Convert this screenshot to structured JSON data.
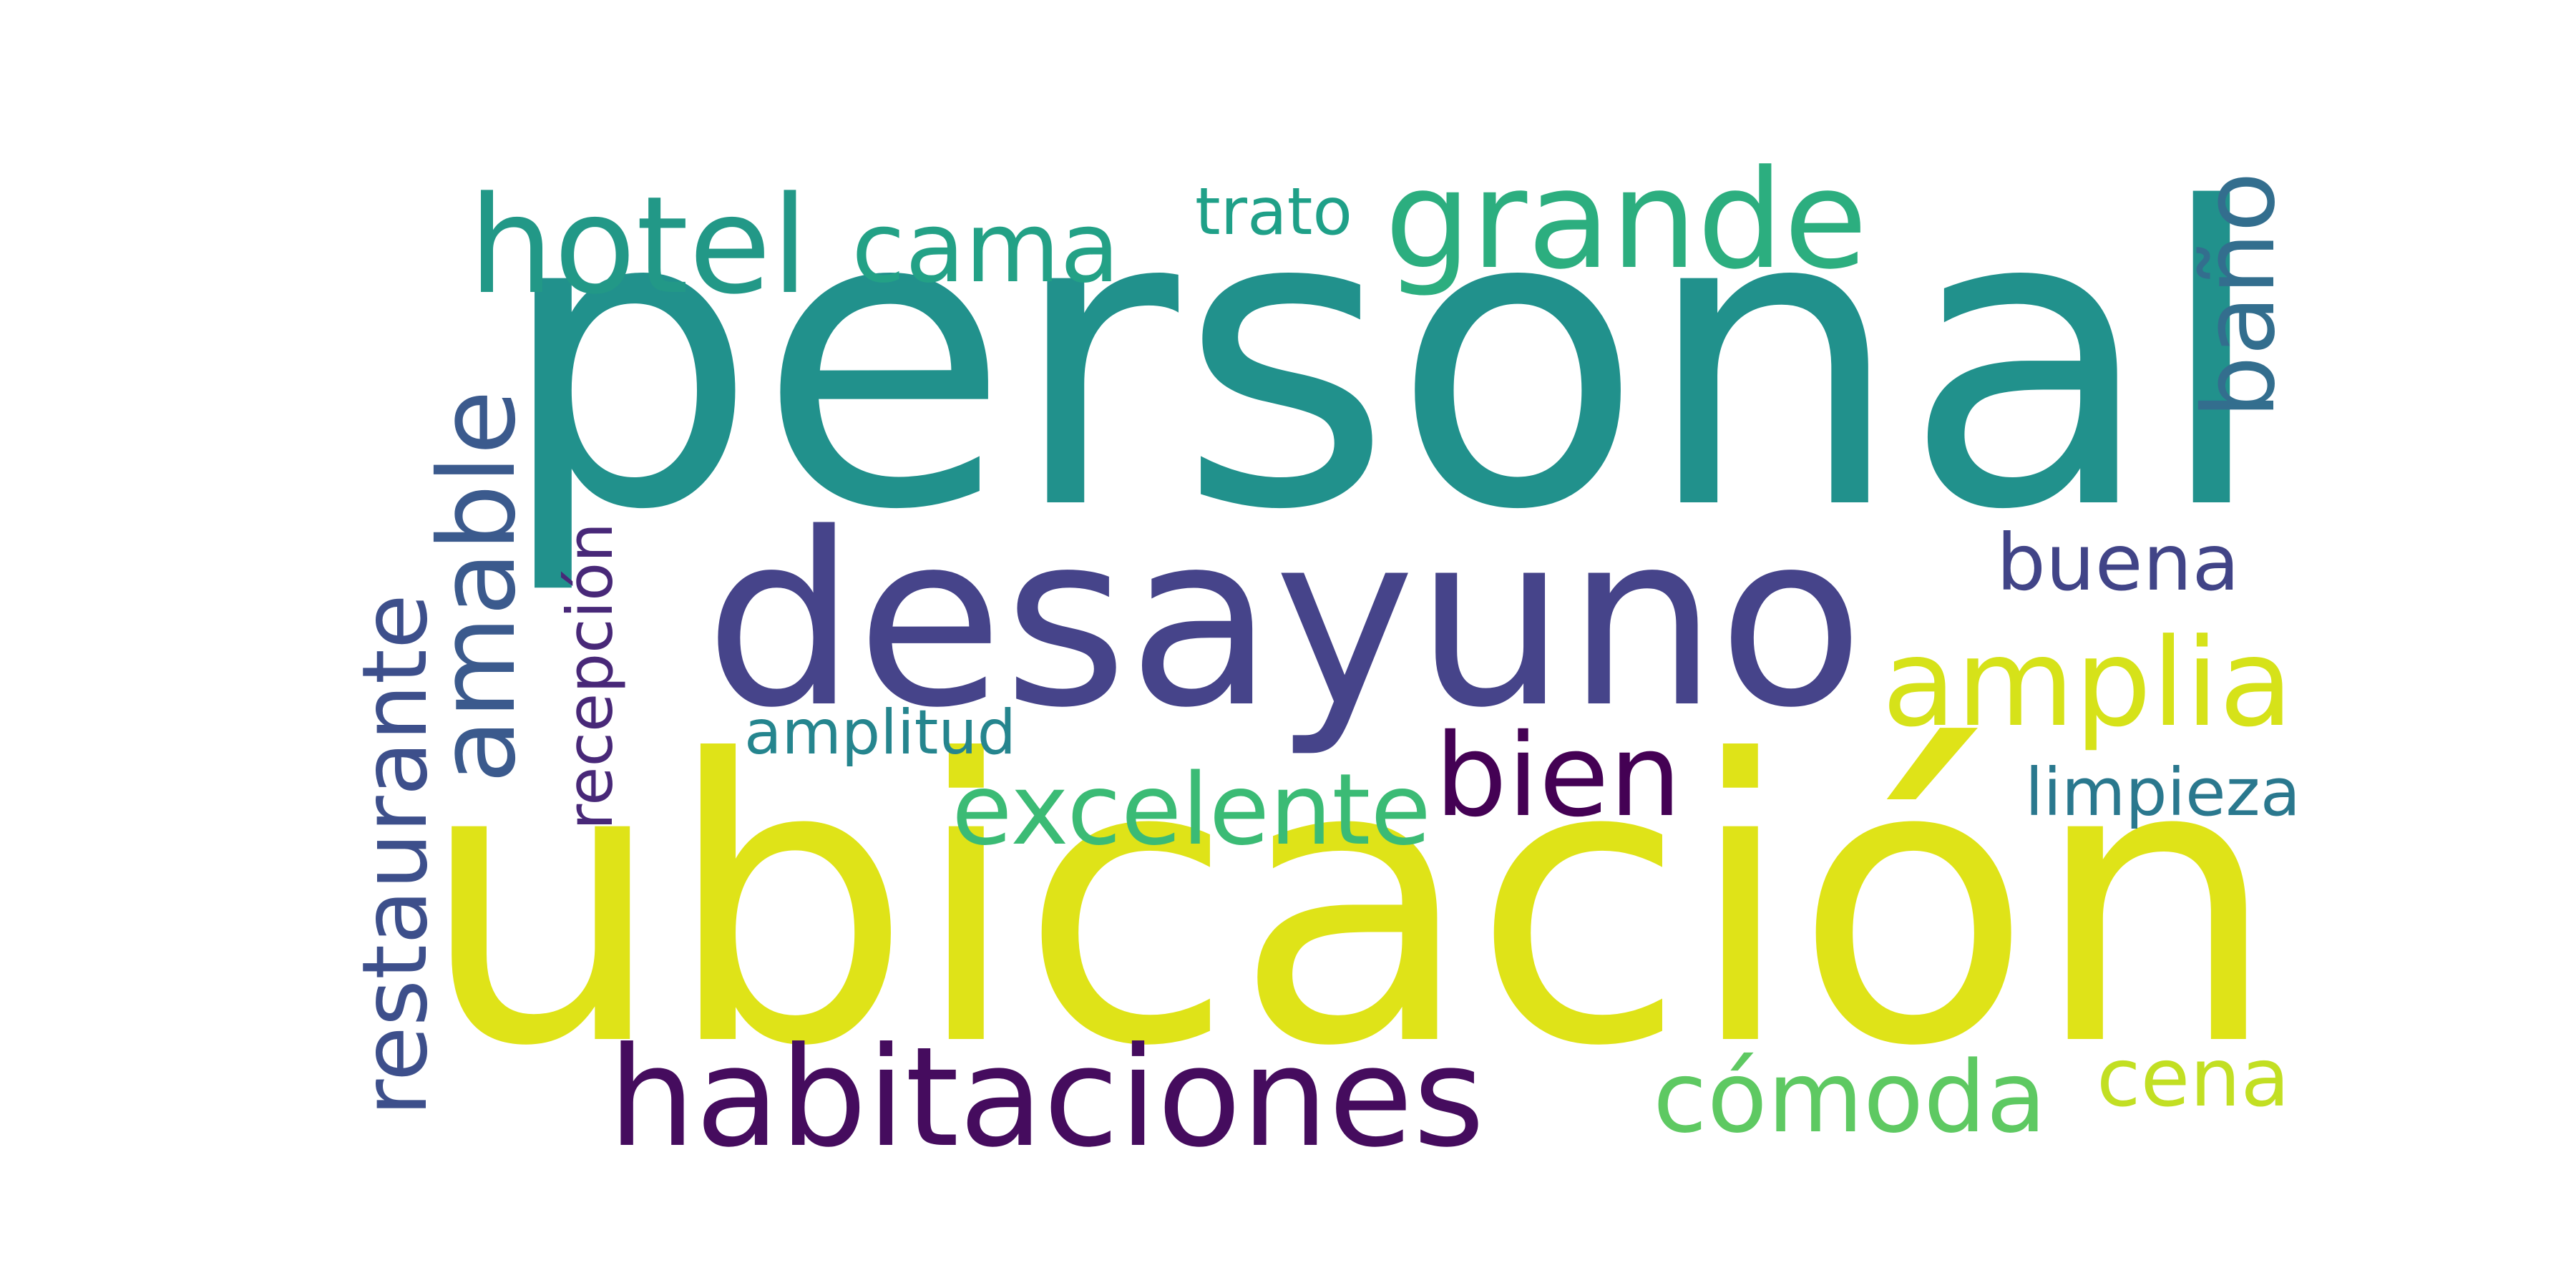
{
  "background_color": "#ffffff",
  "words": [
    {
      "text": "ubicación",
      "color": "#dfe318",
      "rotated": false
    },
    {
      "text": "personal",
      "color": "#21918c",
      "rotated": false
    },
    {
      "text": "desayuno",
      "color": "#46448a",
      "rotated": false
    },
    {
      "text": "grande",
      "color": "#2cae7f",
      "rotated": false
    },
    {
      "text": "hotel",
      "color": "#229887",
      "rotated": false
    },
    {
      "text": "cama",
      "color": "#23a186",
      "rotated": false
    },
    {
      "text": "trato",
      "color": "#1fa088",
      "rotated": false
    },
    {
      "text": "baño",
      "color": "#336e8e",
      "rotated": true
    },
    {
      "text": "buena",
      "color": "#414487",
      "rotated": false
    },
    {
      "text": "amplia",
      "color": "#d6e219",
      "rotated": false
    },
    {
      "text": "amable",
      "color": "#3b5a8d",
      "rotated": true
    },
    {
      "text": "restaurante",
      "color": "#3d4f8b",
      "rotated": true
    },
    {
      "text": "recepción",
      "color": "#482878",
      "rotated": true
    },
    {
      "text": "amplitud",
      "color": "#25858e",
      "rotated": false
    },
    {
      "text": "excelente",
      "color": "#3bbb75",
      "rotated": false
    },
    {
      "text": "bien",
      "color": "#440154",
      "rotated": false
    },
    {
      "text": "limpieza",
      "color": "#2a788e",
      "rotated": false
    },
    {
      "text": "habitaciones",
      "color": "#450c5e",
      "rotated": false
    },
    {
      "text": "cómoda",
      "color": "#5ec962",
      "rotated": false
    },
    {
      "text": "cena",
      "color": "#c2df23",
      "rotated": false
    }
  ]
}
